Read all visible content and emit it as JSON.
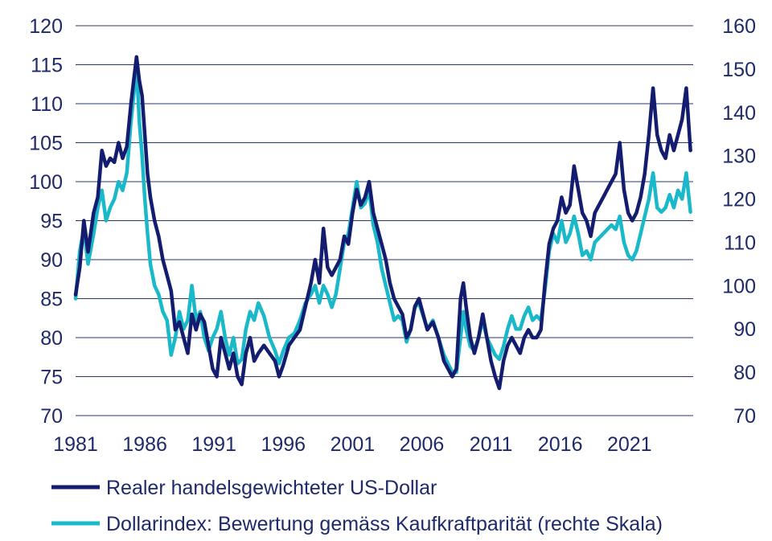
{
  "chart_data": {
    "type": "line",
    "title": "",
    "xlabel": "",
    "ylabel": "",
    "y2label": "",
    "xlim": [
      1981,
      2025.6
    ],
    "ylim": [
      70,
      120
    ],
    "y2lim": [
      70,
      160
    ],
    "x_ticks": [
      "1981",
      "1986",
      "1991",
      "1996",
      "2001",
      "2006",
      "2011",
      "2016",
      "2021"
    ],
    "y_ticks": [
      "120",
      "115",
      "110",
      "105",
      "100",
      "95",
      "90",
      "85",
      "80",
      "75",
      "70"
    ],
    "y2_ticks": [
      "160",
      "150",
      "140",
      "130",
      "120",
      "110",
      "100",
      "90",
      "80",
      "70"
    ],
    "grid": true,
    "legend": "bottom",
    "series": [
      {
        "name": "Realer handelsgewichteter US-Dollar",
        "axis": "left",
        "color": "#131c6e",
        "points": [
          [
            1981.0,
            85.5
          ],
          [
            1981.3,
            89.0
          ],
          [
            1981.6,
            95.0
          ],
          [
            1981.9,
            91.0
          ],
          [
            1982.3,
            96.0
          ],
          [
            1982.6,
            98.0
          ],
          [
            1982.9,
            104.0
          ],
          [
            1983.2,
            102.0
          ],
          [
            1983.5,
            103.0
          ],
          [
            1983.8,
            102.5
          ],
          [
            1984.1,
            105.0
          ],
          [
            1984.4,
            103.0
          ],
          [
            1984.7,
            104.5
          ],
          [
            1985.0,
            110.0
          ],
          [
            1985.2,
            113.0
          ],
          [
            1985.4,
            116.0
          ],
          [
            1985.6,
            113.0
          ],
          [
            1985.8,
            111.0
          ],
          [
            1986.0,
            106.0
          ],
          [
            1986.2,
            101.0
          ],
          [
            1986.4,
            98.0
          ],
          [
            1986.7,
            95.0
          ],
          [
            1987.0,
            93.0
          ],
          [
            1987.3,
            90.0
          ],
          [
            1987.6,
            88.0
          ],
          [
            1987.9,
            86.0
          ],
          [
            1988.2,
            81.0
          ],
          [
            1988.5,
            82.0
          ],
          [
            1988.8,
            80.0
          ],
          [
            1989.1,
            78.0
          ],
          [
            1989.4,
            83.0
          ],
          [
            1989.7,
            81.0
          ],
          [
            1990.0,
            83.0
          ],
          [
            1990.3,
            82.0
          ],
          [
            1990.6,
            79.0
          ],
          [
            1990.9,
            76.0
          ],
          [
            1991.2,
            75.0
          ],
          [
            1991.5,
            80.0
          ],
          [
            1991.8,
            78.0
          ],
          [
            1992.1,
            76.0
          ],
          [
            1992.4,
            78.0
          ],
          [
            1992.7,
            75.0
          ],
          [
            1993.0,
            74.0
          ],
          [
            1993.3,
            78.0
          ],
          [
            1993.6,
            80.0
          ],
          [
            1993.9,
            77.0
          ],
          [
            1994.2,
            78.0
          ],
          [
            1994.6,
            79.0
          ],
          [
            1995.0,
            78.0
          ],
          [
            1995.4,
            77.0
          ],
          [
            1995.7,
            75.0
          ],
          [
            1996.0,
            76.5
          ],
          [
            1996.4,
            79.0
          ],
          [
            1996.8,
            80.0
          ],
          [
            1997.2,
            81.0
          ],
          [
            1997.6,
            84.0
          ],
          [
            1998.0,
            87.0
          ],
          [
            1998.3,
            90.0
          ],
          [
            1998.6,
            87.0
          ],
          [
            1998.9,
            94.0
          ],
          [
            1999.2,
            89.0
          ],
          [
            1999.5,
            88.0
          ],
          [
            1999.8,
            89.0
          ],
          [
            2000.1,
            90.0
          ],
          [
            2000.4,
            93.0
          ],
          [
            2000.7,
            92.0
          ],
          [
            2001.0,
            96.0
          ],
          [
            2001.3,
            99.0
          ],
          [
            2001.6,
            97.0
          ],
          [
            2001.9,
            98.0
          ],
          [
            2002.2,
            100.0
          ],
          [
            2002.5,
            96.0
          ],
          [
            2002.8,
            94.0
          ],
          [
            2003.1,
            92.0
          ],
          [
            2003.4,
            90.0
          ],
          [
            2003.7,
            87.0
          ],
          [
            2004.0,
            85.0
          ],
          [
            2004.3,
            84.0
          ],
          [
            2004.6,
            83.0
          ],
          [
            2004.9,
            80.0
          ],
          [
            2005.2,
            81.0
          ],
          [
            2005.5,
            84.0
          ],
          [
            2005.8,
            85.0
          ],
          [
            2006.1,
            83.0
          ],
          [
            2006.4,
            81.0
          ],
          [
            2006.8,
            82.0
          ],
          [
            2007.2,
            80.0
          ],
          [
            2007.6,
            77.0
          ],
          [
            2007.9,
            76.0
          ],
          [
            2008.2,
            75.0
          ],
          [
            2008.5,
            76.0
          ],
          [
            2008.8,
            85.0
          ],
          [
            2009.0,
            87.0
          ],
          [
            2009.2,
            84.0
          ],
          [
            2009.5,
            80.0
          ],
          [
            2009.8,
            78.0
          ],
          [
            2010.1,
            80.0
          ],
          [
            2010.4,
            83.0
          ],
          [
            2010.7,
            80.0
          ],
          [
            2011.0,
            77.0
          ],
          [
            2011.3,
            75.0
          ],
          [
            2011.6,
            73.5
          ],
          [
            2011.9,
            77.0
          ],
          [
            2012.2,
            79.0
          ],
          [
            2012.5,
            80.0
          ],
          [
            2012.8,
            79.0
          ],
          [
            2013.1,
            78.0
          ],
          [
            2013.4,
            80.0
          ],
          [
            2013.7,
            81.0
          ],
          [
            2014.0,
            80.0
          ],
          [
            2014.3,
            80.0
          ],
          [
            2014.6,
            81.0
          ],
          [
            2014.9,
            87.0
          ],
          [
            2015.2,
            92.0
          ],
          [
            2015.5,
            94.0
          ],
          [
            2015.8,
            95.0
          ],
          [
            2016.1,
            98.0
          ],
          [
            2016.4,
            96.0
          ],
          [
            2016.7,
            97.0
          ],
          [
            2017.0,
            102.0
          ],
          [
            2017.3,
            99.0
          ],
          [
            2017.6,
            96.0
          ],
          [
            2017.9,
            95.0
          ],
          [
            2018.2,
            93.0
          ],
          [
            2018.5,
            96.0
          ],
          [
            2018.8,
            97.0
          ],
          [
            2019.1,
            98.0
          ],
          [
            2019.4,
            99.0
          ],
          [
            2019.7,
            100.0
          ],
          [
            2020.0,
            101.0
          ],
          [
            2020.3,
            105.0
          ],
          [
            2020.6,
            99.0
          ],
          [
            2020.9,
            96.0
          ],
          [
            2021.2,
            95.0
          ],
          [
            2021.5,
            96.0
          ],
          [
            2021.8,
            98.0
          ],
          [
            2022.1,
            101.0
          ],
          [
            2022.4,
            106.0
          ],
          [
            2022.7,
            112.0
          ],
          [
            2023.0,
            106.0
          ],
          [
            2023.3,
            104.0
          ],
          [
            2023.6,
            103.0
          ],
          [
            2023.9,
            106.0
          ],
          [
            2024.2,
            104.0
          ],
          [
            2024.5,
            106.0
          ],
          [
            2024.8,
            108.0
          ],
          [
            2025.1,
            112.0
          ],
          [
            2025.4,
            104.0
          ]
        ]
      },
      {
        "name": "Dollarindex: Bewertung gemäss Kaufkraftparität (rechte Skala)",
        "axis": "right",
        "color": "#1ab9c9",
        "points": [
          [
            1981.0,
            97.0
          ],
          [
            1981.3,
            108.0
          ],
          [
            1981.6,
            113.0
          ],
          [
            1981.9,
            105.0
          ],
          [
            1982.3,
            112.0
          ],
          [
            1982.6,
            118.0
          ],
          [
            1982.9,
            122.0
          ],
          [
            1983.2,
            115.0
          ],
          [
            1983.5,
            118.0
          ],
          [
            1983.8,
            120.0
          ],
          [
            1984.1,
            124.0
          ],
          [
            1984.4,
            122.0
          ],
          [
            1984.7,
            126.0
          ],
          [
            1985.0,
            138.0
          ],
          [
            1985.2,
            144.0
          ],
          [
            1985.4,
            151.0
          ],
          [
            1985.6,
            138.0
          ],
          [
            1985.8,
            130.0
          ],
          [
            1986.0,
            120.0
          ],
          [
            1986.2,
            112.0
          ],
          [
            1986.4,
            105.0
          ],
          [
            1986.7,
            100.0
          ],
          [
            1987.0,
            98.0
          ],
          [
            1987.3,
            94.0
          ],
          [
            1987.6,
            92.0
          ],
          [
            1987.9,
            84.0
          ],
          [
            1988.2,
            88.0
          ],
          [
            1988.5,
            94.0
          ],
          [
            1988.8,
            90.0
          ],
          [
            1989.1,
            92.0
          ],
          [
            1989.4,
            100.0
          ],
          [
            1989.7,
            92.0
          ],
          [
            1990.0,
            94.0
          ],
          [
            1990.3,
            88.0
          ],
          [
            1990.6,
            85.0
          ],
          [
            1990.9,
            88.0
          ],
          [
            1991.2,
            90.0
          ],
          [
            1991.5,
            94.0
          ],
          [
            1991.8,
            88.0
          ],
          [
            1992.1,
            84.0
          ],
          [
            1992.4,
            88.0
          ],
          [
            1992.7,
            82.0
          ],
          [
            1993.0,
            83.0
          ],
          [
            1993.3,
            90.0
          ],
          [
            1993.6,
            94.0
          ],
          [
            1993.9,
            92.0
          ],
          [
            1994.2,
            96.0
          ],
          [
            1994.6,
            93.0
          ],
          [
            1995.0,
            88.0
          ],
          [
            1995.4,
            85.0
          ],
          [
            1995.7,
            82.0
          ],
          [
            1996.0,
            85.0
          ],
          [
            1996.4,
            88.0
          ],
          [
            1996.8,
            89.0
          ],
          [
            1997.2,
            92.0
          ],
          [
            1997.6,
            96.0
          ],
          [
            1998.0,
            98.0
          ],
          [
            1998.3,
            100.0
          ],
          [
            1998.6,
            96.0
          ],
          [
            1998.9,
            100.0
          ],
          [
            1999.2,
            98.0
          ],
          [
            1999.5,
            95.0
          ],
          [
            1999.8,
            98.0
          ],
          [
            2000.1,
            104.0
          ],
          [
            2000.4,
            110.0
          ],
          [
            2000.7,
            112.0
          ],
          [
            2001.0,
            118.0
          ],
          [
            2001.3,
            124.0
          ],
          [
            2001.6,
            118.0
          ],
          [
            2001.9,
            119.0
          ],
          [
            2002.2,
            122.0
          ],
          [
            2002.5,
            114.0
          ],
          [
            2002.8,
            110.0
          ],
          [
            2003.1,
            104.0
          ],
          [
            2003.4,
            100.0
          ],
          [
            2003.7,
            96.0
          ],
          [
            2004.0,
            92.0
          ],
          [
            2004.3,
            93.0
          ],
          [
            2004.6,
            92.0
          ],
          [
            2004.9,
            87.0
          ],
          [
            2005.2,
            90.0
          ],
          [
            2005.5,
            95.0
          ],
          [
            2005.8,
            96.0
          ],
          [
            2006.1,
            93.0
          ],
          [
            2006.4,
            90.0
          ],
          [
            2006.8,
            92.0
          ],
          [
            2007.2,
            88.0
          ],
          [
            2007.6,
            84.0
          ],
          [
            2007.9,
            82.0
          ],
          [
            2008.2,
            80.0
          ],
          [
            2008.5,
            80.0
          ],
          [
            2008.8,
            88.0
          ],
          [
            2009.0,
            94.0
          ],
          [
            2009.2,
            90.0
          ],
          [
            2009.5,
            86.0
          ],
          [
            2009.8,
            85.0
          ],
          [
            2010.1,
            88.0
          ],
          [
            2010.4,
            92.0
          ],
          [
            2010.7,
            88.0
          ],
          [
            2011.0,
            86.0
          ],
          [
            2011.3,
            84.0
          ],
          [
            2011.6,
            83.0
          ],
          [
            2011.9,
            86.0
          ],
          [
            2012.2,
            90.0
          ],
          [
            2012.5,
            93.0
          ],
          [
            2012.8,
            90.0
          ],
          [
            2013.1,
            90.0
          ],
          [
            2013.4,
            93.0
          ],
          [
            2013.7,
            95.0
          ],
          [
            2014.0,
            92.0
          ],
          [
            2014.3,
            93.0
          ],
          [
            2014.6,
            92.0
          ],
          [
            2014.9,
            99.0
          ],
          [
            2015.2,
            108.0
          ],
          [
            2015.5,
            112.0
          ],
          [
            2015.8,
            110.0
          ],
          [
            2016.1,
            115.0
          ],
          [
            2016.4,
            110.0
          ],
          [
            2016.7,
            112.0
          ],
          [
            2017.0,
            116.0
          ],
          [
            2017.3,
            112.0
          ],
          [
            2017.6,
            107.0
          ],
          [
            2017.9,
            108.0
          ],
          [
            2018.2,
            106.0
          ],
          [
            2018.5,
            110.0
          ],
          [
            2018.8,
            111.0
          ],
          [
            2019.1,
            112.0
          ],
          [
            2019.4,
            113.0
          ],
          [
            2019.7,
            114.0
          ],
          [
            2020.0,
            113.0
          ],
          [
            2020.3,
            116.0
          ],
          [
            2020.6,
            110.0
          ],
          [
            2020.9,
            107.0
          ],
          [
            2021.2,
            106.0
          ],
          [
            2021.5,
            108.0
          ],
          [
            2021.8,
            112.0
          ],
          [
            2022.1,
            116.0
          ],
          [
            2022.4,
            120.0
          ],
          [
            2022.7,
            126.0
          ],
          [
            2023.0,
            118.0
          ],
          [
            2023.3,
            117.0
          ],
          [
            2023.6,
            118.0
          ],
          [
            2023.9,
            121.0
          ],
          [
            2024.2,
            118.0
          ],
          [
            2024.5,
            122.0
          ],
          [
            2024.8,
            120.0
          ],
          [
            2025.1,
            126.0
          ],
          [
            2025.4,
            117.0
          ]
        ]
      }
    ]
  }
}
